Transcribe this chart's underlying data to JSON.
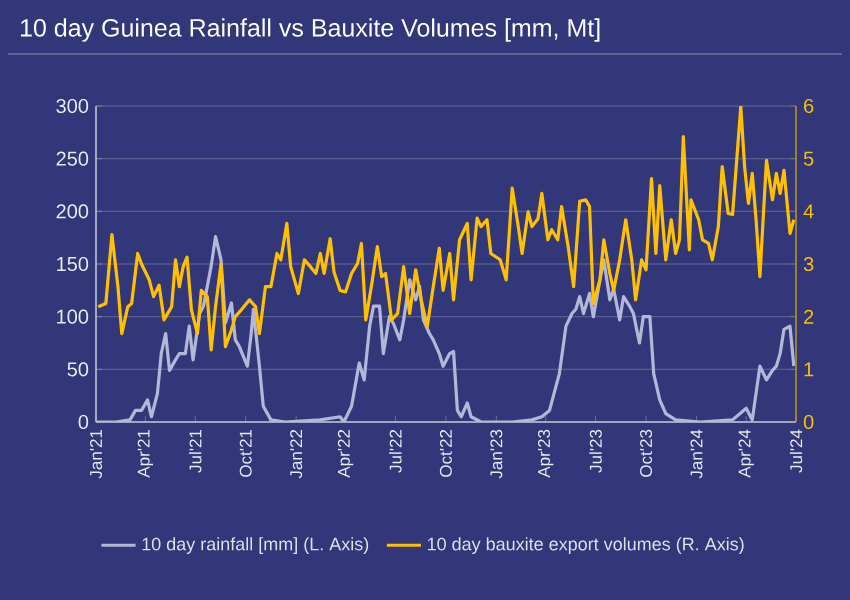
{
  "chart_data": {
    "type": "line",
    "title": "10 day Guinea Rainfall vs Bauxite Volumes [mm, Mt]",
    "xlim": [
      "2021-01-01",
      "2024-07-01"
    ],
    "xticks": [
      {
        "value": "2021-01-01",
        "label": "Jan'21"
      },
      {
        "value": "2021-04-01",
        "label": "Apr'21"
      },
      {
        "value": "2021-07-01",
        "label": "Jul'21"
      },
      {
        "value": "2021-10-01",
        "label": "Oct'21"
      },
      {
        "value": "2022-01-01",
        "label": "Jan'22"
      },
      {
        "value": "2022-04-01",
        "label": "Apr'22"
      },
      {
        "value": "2022-07-01",
        "label": "Jul'22"
      },
      {
        "value": "2022-10-01",
        "label": "Oct'22"
      },
      {
        "value": "2023-01-01",
        "label": "Jan'23"
      },
      {
        "value": "2023-04-01",
        "label": "Apr'23"
      },
      {
        "value": "2023-07-01",
        "label": "Jul'23"
      },
      {
        "value": "2023-10-01",
        "label": "Oct'23"
      },
      {
        "value": "2024-01-01",
        "label": "Jan'24"
      },
      {
        "value": "2024-04-01",
        "label": "Apr'24"
      },
      {
        "value": "2024-07-01",
        "label": "Jul'24"
      }
    ],
    "ylim": [
      0,
      300
    ],
    "yticks": [
      0,
      50,
      100,
      150,
      200,
      250,
      300
    ],
    "y2lim": [
      0,
      6
    ],
    "y2ticks": [
      0,
      1,
      2,
      3,
      4,
      5,
      6
    ],
    "grid": "y",
    "legend": "bottom",
    "series": [
      {
        "name": "10 day rainfall [mm] (L. Axis)",
        "color": "#b4b8d8",
        "x": [
          "2021-01-01",
          "2021-02-06",
          "2021-03-04",
          "2021-03-14",
          "2021-03-25",
          "2021-04-05",
          "2021-04-12",
          "2021-04-23",
          "2021-04-30",
          "2021-05-08",
          "2021-05-15",
          "2021-05-26",
          "2021-06-02",
          "2021-06-13",
          "2021-06-20",
          "2021-06-27",
          "2021-07-09",
          "2021-07-16",
          "2021-07-30",
          "2021-08-07",
          "2021-08-17",
          "2021-08-25",
          "2021-09-05",
          "2021-09-12",
          "2021-09-19",
          "2021-10-04",
          "2021-10-11",
          "2021-10-15",
          "2021-10-26",
          "2021-11-02",
          "2021-11-16",
          "2021-12-12",
          "2022-02-14",
          "2022-03-22",
          "2022-03-29",
          "2022-04-12",
          "2022-04-26",
          "2022-05-05",
          "2022-05-15",
          "2022-05-22",
          "2022-06-02",
          "2022-06-09",
          "2022-06-20",
          "2022-06-27",
          "2022-07-09",
          "2022-07-16",
          "2022-07-27",
          "2022-08-07",
          "2022-08-14",
          "2022-08-21",
          "2022-09-01",
          "2022-09-08",
          "2022-09-19",
          "2022-09-26",
          "2022-10-08",
          "2022-10-15",
          "2022-10-22",
          "2022-10-29",
          "2022-11-09",
          "2022-11-16",
          "2022-12-04",
          "2023-01-30",
          "2023-03-07",
          "2023-03-25",
          "2023-04-08",
          "2023-04-26",
          "2023-05-08",
          "2023-05-19",
          "2023-05-26",
          "2023-06-02",
          "2023-06-09",
          "2023-06-20",
          "2023-06-27",
          "2023-07-09",
          "2023-07-16",
          "2023-07-27",
          "2023-08-03",
          "2023-08-14",
          "2023-08-21",
          "2023-09-01",
          "2023-09-08",
          "2023-09-19",
          "2023-09-26",
          "2023-10-08",
          "2023-10-15",
          "2023-10-26",
          "2023-11-06",
          "2023-11-24",
          "2024-01-08",
          "2024-03-07",
          "2024-04-01",
          "2024-04-12",
          "2024-04-26",
          "2024-05-08",
          "2024-05-19",
          "2024-05-26",
          "2024-06-02",
          "2024-06-09",
          "2024-06-20",
          "2024-06-27"
        ],
        "values": [
          0,
          0,
          2,
          11,
          11,
          21,
          5,
          27,
          65,
          84,
          49,
          59,
          65,
          65,
          91,
          59,
          103,
          110,
          148,
          176,
          154,
          94,
          113,
          78,
          72,
          53,
          84,
          107,
          53,
          15,
          2,
          0,
          2,
          5,
          0,
          15,
          56,
          40,
          91,
          110,
          110,
          65,
          100,
          94,
          78,
          97,
          135,
          116,
          129,
          97,
          84,
          78,
          65,
          53,
          65,
          67,
          11,
          5,
          18,
          5,
          0,
          0,
          2,
          5,
          11,
          46,
          91,
          103,
          107,
          119,
          103,
          122,
          100,
          135,
          154,
          116,
          126,
          97,
          119,
          110,
          103,
          75,
          100,
          100,
          46,
          21,
          8,
          2,
          0,
          2,
          13,
          2,
          53,
          40,
          49,
          53,
          65,
          88,
          91,
          53
        ]
      },
      {
        "name": "10 day bauxite export volumes (R. Axis)",
        "color": "#ffc000",
        "axis": "y2",
        "x": [
          "2021-01-05",
          "2021-01-19",
          "2021-01-30",
          "2021-02-10",
          "2021-02-17",
          "2021-02-28",
          "2021-03-07",
          "2021-03-18",
          "2021-03-25",
          "2021-04-08",
          "2021-04-16",
          "2021-04-26",
          "2021-05-05",
          "2021-05-19",
          "2021-05-26",
          "2021-06-02",
          "2021-06-09",
          "2021-06-16",
          "2021-06-24",
          "2021-07-05",
          "2021-07-12",
          "2021-07-23",
          "2021-07-30",
          "2021-08-07",
          "2021-08-17",
          "2021-08-25",
          "2021-09-05",
          "2021-09-12",
          "2021-09-23",
          "2021-10-08",
          "2021-10-19",
          "2021-10-26",
          "2021-11-06",
          "2021-11-16",
          "2021-11-27",
          "2021-12-04",
          "2021-12-15",
          "2021-12-22",
          "2022-01-05",
          "2022-01-16",
          "2022-01-27",
          "2022-02-06",
          "2022-02-14",
          "2022-02-21",
          "2022-03-04",
          "2022-03-11",
          "2022-03-22",
          "2022-04-01",
          "2022-04-12",
          "2022-04-23",
          "2022-04-30",
          "2022-05-08",
          "2022-05-19",
          "2022-05-29",
          "2022-06-06",
          "2022-06-13",
          "2022-06-24",
          "2022-07-05",
          "2022-07-16",
          "2022-07-27",
          "2022-08-07",
          "2022-08-17",
          "2022-08-28",
          "2022-09-08",
          "2022-09-19",
          "2022-09-26",
          "2022-10-08",
          "2022-10-15",
          "2022-10-26",
          "2022-11-09",
          "2022-11-16",
          "2022-11-27",
          "2022-12-04",
          "2022-12-15",
          "2022-12-22",
          "2023-01-08",
          "2023-01-19",
          "2023-01-30",
          "2023-02-10",
          "2023-02-17",
          "2023-02-28",
          "2023-03-07",
          "2023-03-18",
          "2023-03-25",
          "2023-04-05",
          "2023-04-12",
          "2023-04-23",
          "2023-04-30",
          "2023-05-12",
          "2023-05-22",
          "2023-06-02",
          "2023-06-13",
          "2023-06-20",
          "2023-06-27",
          "2023-07-09",
          "2023-07-16",
          "2023-07-27",
          "2023-08-03",
          "2023-08-14",
          "2023-08-25",
          "2023-09-05",
          "2023-09-12",
          "2023-09-23",
          "2023-10-01",
          "2023-10-11",
          "2023-10-19",
          "2023-10-26",
          "2023-11-06",
          "2023-11-16",
          "2023-11-24",
          "2023-12-01",
          "2023-12-08",
          "2023-12-19",
          "2023-12-22",
          "2024-01-05",
          "2024-01-12",
          "2024-01-23",
          "2024-01-30",
          "2024-02-10",
          "2024-02-17",
          "2024-02-28",
          "2024-03-07",
          "2024-03-22",
          "2024-03-29",
          "2024-04-05",
          "2024-04-12",
          "2024-04-19",
          "2024-04-26",
          "2024-05-08",
          "2024-05-19",
          "2024-05-26",
          "2024-06-02",
          "2024-06-09",
          "2024-06-20",
          "2024-06-27"
        ],
        "values": [
          2.19,
          2.25,
          3.56,
          2.57,
          1.68,
          2.19,
          2.25,
          3.2,
          3.0,
          2.7,
          2.38,
          2.6,
          1.94,
          2.19,
          3.08,
          2.57,
          2.95,
          3.13,
          2.13,
          1.68,
          2.5,
          2.38,
          1.37,
          2.19,
          3.0,
          1.43,
          1.75,
          2.0,
          2.13,
          2.32,
          2.19,
          1.68,
          2.57,
          2.57,
          3.2,
          3.08,
          3.77,
          2.95,
          2.44,
          3.08,
          2.95,
          2.82,
          3.2,
          2.82,
          3.48,
          2.85,
          2.5,
          2.47,
          2.82,
          3.01,
          3.39,
          1.94,
          2.63,
          3.33,
          2.76,
          2.82,
          1.94,
          2.06,
          2.95,
          2.06,
          2.89,
          2.32,
          1.81,
          2.57,
          3.3,
          2.5,
          3.2,
          2.32,
          3.46,
          3.77,
          2.7,
          3.87,
          3.71,
          3.84,
          3.2,
          3.08,
          2.7,
          4.44,
          3.71,
          3.2,
          3.99,
          3.71,
          3.86,
          4.34,
          3.46,
          3.65,
          3.46,
          4.09,
          3.33,
          2.57,
          4.19,
          4.22,
          4.09,
          2.25,
          2.7,
          3.46,
          2.82,
          2.5,
          3.08,
          3.84,
          3.08,
          2.32,
          3.08,
          2.89,
          4.62,
          3.2,
          4.49,
          3.08,
          3.84,
          3.2,
          3.46,
          5.42,
          3.27,
          4.22,
          3.84,
          3.46,
          3.39,
          3.08,
          3.71,
          4.85,
          3.96,
          3.94,
          5.99,
          4.85,
          4.15,
          4.72,
          3.84,
          2.76,
          4.97,
          4.22,
          4.72,
          4.34,
          4.78,
          3.58,
          3.84
        ]
      }
    ]
  }
}
